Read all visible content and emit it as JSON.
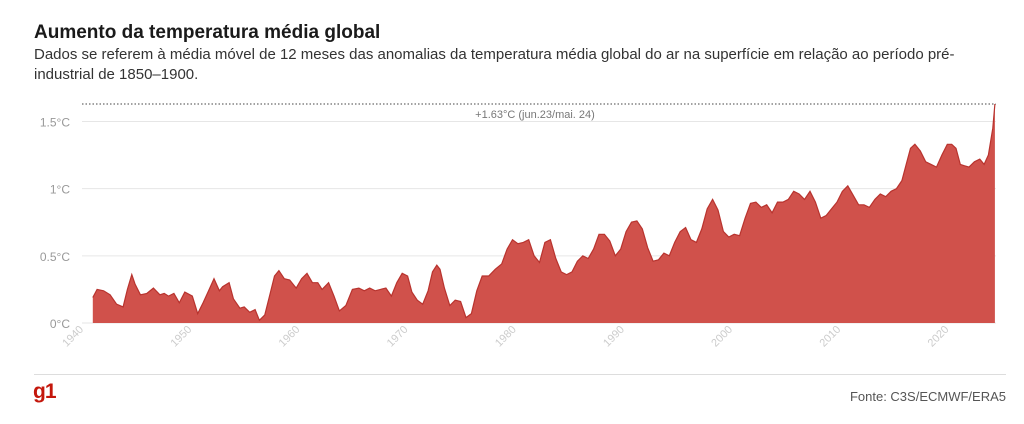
{
  "header": {
    "title": "Aumento da temperatura média global",
    "subtitle": "Dados se referem à média móvel de 12 meses das anomalias da temperatura média global do ar na superfície em relação ao período pré-industrial de 1850–1900."
  },
  "footer": {
    "logo": "g1",
    "source": "Fonte: C3S/ECMWF/ERA5"
  },
  "colors": {
    "area_fill": "#d0514b",
    "area_stroke": "#b8332e",
    "grid": "#e6e6e6",
    "reference_line": "#444444",
    "brand": "#c4170c"
  },
  "chart_data": {
    "type": "area",
    "title": "Aumento da temperatura média global",
    "xlabel": "",
    "ylabel": "",
    "xlim": [
      1940,
      2024.5
    ],
    "ylim": [
      0,
      1.6
    ],
    "x_ticks": [
      1940,
      1950,
      1960,
      1970,
      1980,
      1990,
      2000,
      2010,
      2020
    ],
    "x_tick_labels": [
      "1940",
      "1950",
      "1960",
      "1970",
      "1980",
      "1990",
      "2000",
      "2010",
      "2020"
    ],
    "y_ticks": [
      0,
      0.5,
      1,
      1.5
    ],
    "y_tick_labels": [
      "0°C",
      "0.5°C",
      "1°C",
      "1.5°C"
    ],
    "grid": true,
    "annotation": {
      "value": 1.63,
      "label": "+1.63°C (jun.23/mai. 24)",
      "style": "dotted horizontal reference line"
    },
    "series": [
      {
        "x": [
          1941.0,
          1941.4,
          1942.0,
          1942.6,
          1943.2,
          1943.8,
          1944.2,
          1944.6,
          1944.9,
          1945.4,
          1946.0,
          1946.6,
          1947.2,
          1947.6,
          1948.0,
          1948.5,
          1949.0,
          1949.5,
          1950.2,
          1950.7,
          1951.2,
          1951.7,
          1952.2,
          1952.7,
          1953.0,
          1953.6,
          1954.0,
          1954.6,
          1955.0,
          1955.5,
          1956.0,
          1956.4,
          1956.9,
          1957.4,
          1957.8,
          1958.2,
          1958.7,
          1959.2,
          1959.8,
          1960.3,
          1960.8,
          1961.3,
          1961.8,
          1962.2,
          1962.8,
          1963.3,
          1963.8,
          1964.4,
          1965.0,
          1965.6,
          1966.1,
          1966.6,
          1967.1,
          1967.6,
          1968.1,
          1968.6,
          1969.1,
          1969.6,
          1970.1,
          1970.5,
          1971.0,
          1971.5,
          1972.0,
          1972.4,
          1972.8,
          1973.1,
          1973.5,
          1974.0,
          1974.5,
          1975.0,
          1975.5,
          1976.0,
          1976.5,
          1977.0,
          1977.6,
          1978.2,
          1978.8,
          1979.3,
          1979.8,
          1980.3,
          1980.8,
          1981.3,
          1981.8,
          1982.3,
          1982.8,
          1983.3,
          1983.8,
          1984.3,
          1984.8,
          1985.3,
          1985.8,
          1986.3,
          1986.8,
          1987.3,
          1987.8,
          1988.3,
          1988.8,
          1989.3,
          1989.8,
          1990.3,
          1990.8,
          1991.3,
          1991.8,
          1992.3,
          1992.8,
          1993.3,
          1993.8,
          1994.3,
          1994.8,
          1995.3,
          1995.8,
          1996.3,
          1996.8,
          1997.3,
          1997.8,
          1998.3,
          1998.8,
          1999.3,
          1999.8,
          2000.3,
          2000.8,
          2001.3,
          2001.8,
          2002.3,
          2002.8,
          2003.3,
          2003.8,
          2004.3,
          2004.8,
          2005.3,
          2005.8,
          2006.3,
          2006.8,
          2007.3,
          2007.8,
          2008.3,
          2008.8,
          2009.3,
          2009.8,
          2010.3,
          2010.8,
          2011.3,
          2011.8,
          2012.3,
          2012.8,
          2013.3,
          2013.8,
          2014.3,
          2014.8,
          2015.3,
          2015.8,
          2016.2,
          2016.6,
          2017.0,
          2017.5,
          2018.0,
          2018.5,
          2019.0,
          2019.5,
          2020.0,
          2020.4,
          2020.8,
          2021.2,
          2021.6,
          2022.0,
          2022.5,
          2023.0,
          2023.4,
          2023.8,
          2024.2,
          2024.4
        ],
        "values": [
          0.19,
          0.25,
          0.24,
          0.21,
          0.14,
          0.12,
          0.25,
          0.36,
          0.29,
          0.21,
          0.22,
          0.26,
          0.21,
          0.22,
          0.2,
          0.22,
          0.15,
          0.23,
          0.2,
          0.07,
          0.15,
          0.24,
          0.33,
          0.24,
          0.27,
          0.3,
          0.18,
          0.11,
          0.12,
          0.08,
          0.1,
          0.02,
          0.06,
          0.22,
          0.35,
          0.39,
          0.33,
          0.32,
          0.26,
          0.33,
          0.37,
          0.3,
          0.3,
          0.25,
          0.3,
          0.2,
          0.09,
          0.13,
          0.25,
          0.26,
          0.24,
          0.26,
          0.24,
          0.25,
          0.26,
          0.2,
          0.3,
          0.37,
          0.35,
          0.23,
          0.17,
          0.14,
          0.24,
          0.38,
          0.43,
          0.4,
          0.26,
          0.13,
          0.17,
          0.16,
          0.04,
          0.07,
          0.24,
          0.35,
          0.35,
          0.4,
          0.44,
          0.55,
          0.62,
          0.59,
          0.6,
          0.62,
          0.5,
          0.45,
          0.6,
          0.62,
          0.48,
          0.38,
          0.36,
          0.38,
          0.46,
          0.5,
          0.48,
          0.55,
          0.66,
          0.66,
          0.61,
          0.5,
          0.55,
          0.68,
          0.75,
          0.76,
          0.7,
          0.56,
          0.46,
          0.47,
          0.52,
          0.5,
          0.6,
          0.68,
          0.71,
          0.62,
          0.6,
          0.7,
          0.85,
          0.92,
          0.84,
          0.68,
          0.64,
          0.66,
          0.65,
          0.78,
          0.89,
          0.9,
          0.86,
          0.88,
          0.82,
          0.9,
          0.9,
          0.92,
          0.98,
          0.96,
          0.92,
          0.98,
          0.9,
          0.78,
          0.8,
          0.85,
          0.9,
          0.98,
          1.02,
          0.95,
          0.88,
          0.88,
          0.86,
          0.92,
          0.96,
          0.94,
          0.98,
          1.0,
          1.06,
          1.18,
          1.3,
          1.33,
          1.28,
          1.2,
          1.18,
          1.16,
          1.25,
          1.33,
          1.33,
          1.3,
          1.18,
          1.17,
          1.16,
          1.2,
          1.22,
          1.18,
          1.25,
          1.45,
          1.63
        ]
      }
    ]
  }
}
